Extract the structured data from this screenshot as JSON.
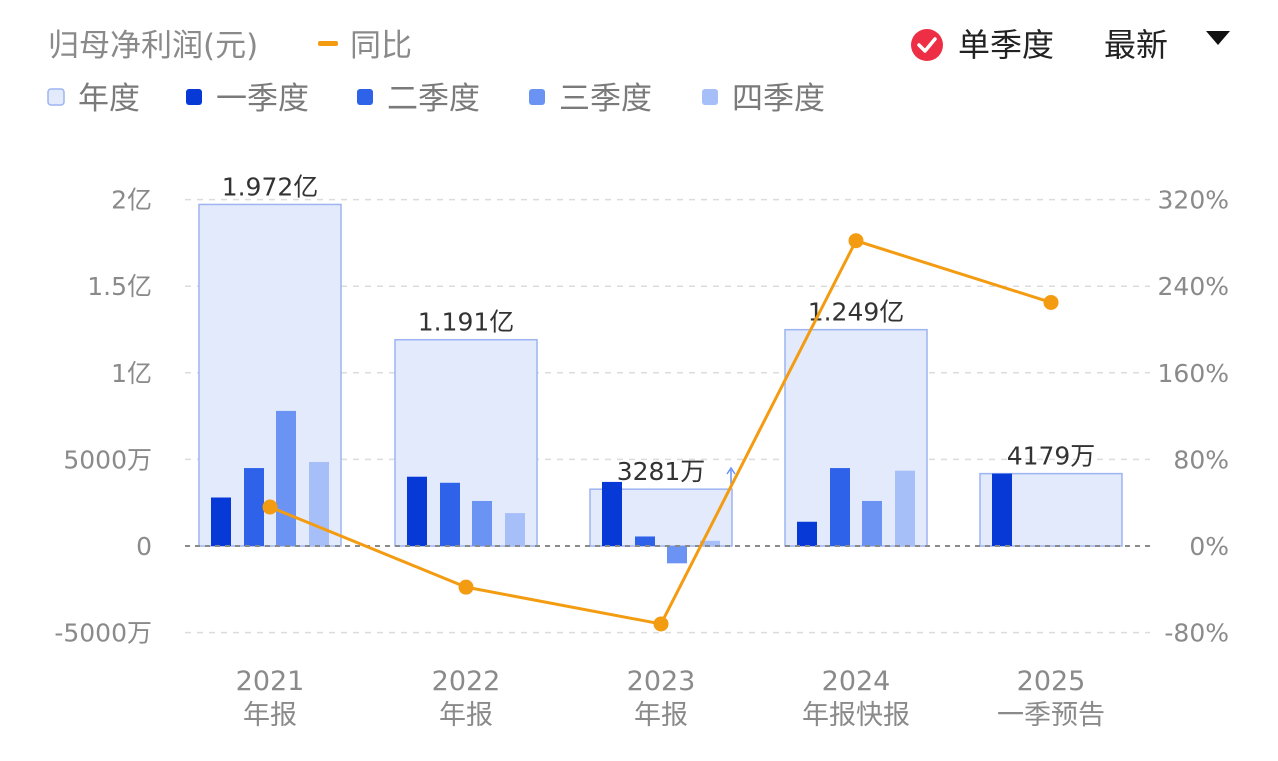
{
  "header": {
    "title": "归母净利润(元)",
    "yoy_label": "同比",
    "single_quarter_label": "单季度",
    "sort_label": "最新"
  },
  "legend": [
    {
      "name": "年度",
      "color": "#e3eafc",
      "border": "#9cb4f2"
    },
    {
      "name": "一季度",
      "color": "#0639d6"
    },
    {
      "name": "二季度",
      "color": "#2e62e8"
    },
    {
      "name": "三季度",
      "color": "#6b93f3"
    },
    {
      "name": "四季度",
      "color": "#a6bff8"
    }
  ],
  "colors": {
    "line": "#f39c12",
    "check": "#ee2e45"
  },
  "chart_data": {
    "type": "bar",
    "categories": [
      {
        "year": "2021",
        "kind": "年报"
      },
      {
        "year": "2022",
        "kind": "年报"
      },
      {
        "year": "2023",
        "kind": "年报"
      },
      {
        "year": "2024",
        "kind": "年报快报"
      },
      {
        "year": "2025",
        "kind": "一季预告"
      }
    ],
    "annual": {
      "values": [
        19720,
        11910,
        3281,
        12490,
        4179
      ],
      "labels": [
        "1.972亿",
        "1.191亿",
        "3281万",
        "1.249亿",
        "4179万"
      ]
    },
    "quarters": [
      {
        "name": "一季度",
        "values": [
          2800,
          4000,
          3700,
          1400,
          4179
        ]
      },
      {
        "name": "二季度",
        "values": [
          4500,
          3650,
          550,
          4500,
          null
        ]
      },
      {
        "name": "三季度",
        "values": [
          7800,
          2600,
          -1000,
          2600,
          null
        ]
      },
      {
        "name": "四季度",
        "values": [
          4850,
          1900,
          300,
          4350,
          null
        ]
      }
    ],
    "yoy": {
      "name": "同比",
      "values": [
        36,
        -38,
        -72,
        282,
        225
      ]
    },
    "y_left": {
      "min": -5000,
      "max": 20000,
      "unit": "万元",
      "ticks": [
        {
          "v": 20000,
          "label": "2亿"
        },
        {
          "v": 15000,
          "label": "1.5亿"
        },
        {
          "v": 10000,
          "label": "1亿"
        },
        {
          "v": 5000,
          "label": "5000万"
        },
        {
          "v": 0,
          "label": "0"
        },
        {
          "v": -5000,
          "label": "-5000万"
        }
      ]
    },
    "y_right": {
      "min": -80,
      "max": 320,
      "ticks": [
        {
          "v": 320,
          "label": "320%"
        },
        {
          "v": 240,
          "label": "240%"
        },
        {
          "v": 160,
          "label": "160%"
        },
        {
          "v": 80,
          "label": "80%"
        },
        {
          "v": 0,
          "label": "0%"
        },
        {
          "v": -80,
          "label": "-80%"
        }
      ]
    },
    "grid": true
  }
}
